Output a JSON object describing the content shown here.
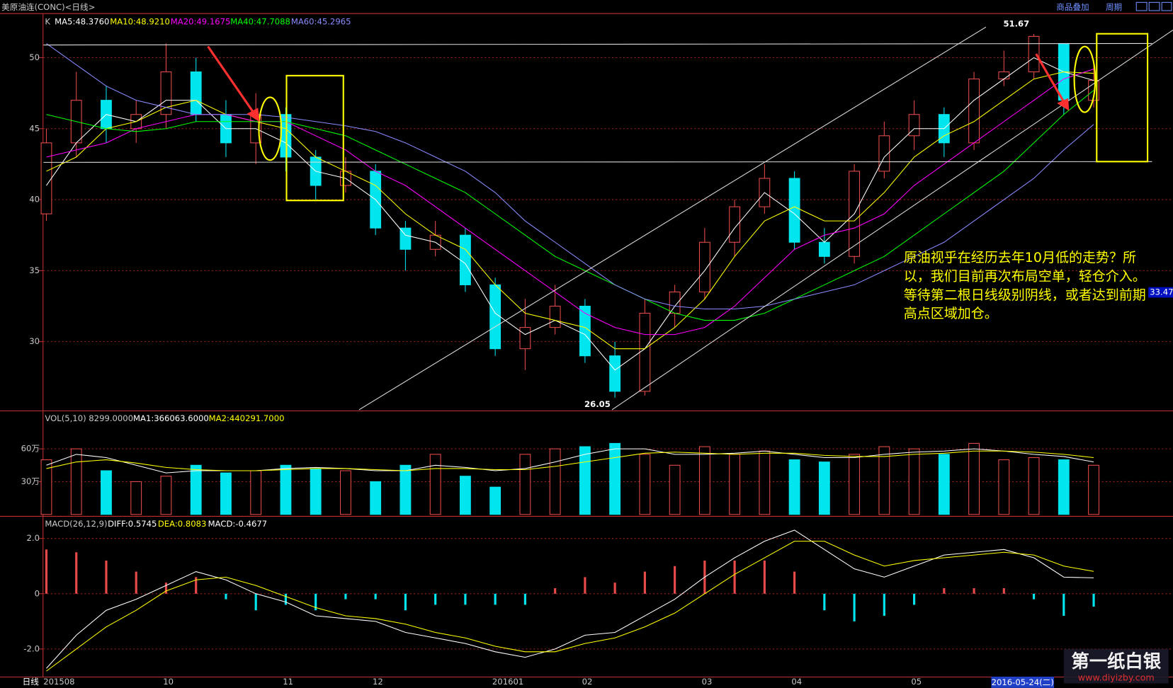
{
  "header": {
    "title": "美原油连(CONC)<日线>",
    "links": [
      "商品叠加",
      "周期"
    ]
  },
  "footer": {
    "period": "日线",
    "date": "2016-05-24(二)"
  },
  "note": [
    "原油视乎在经历去年10月低的走势？所",
    "以，我们目前再次布局空单，轻仓介入。",
    "等待第二根日线级别阴线，或者达到前期",
    "高点区域加仓。"
  ],
  "watermark": {
    "name": "第一纸白银",
    "url": "www.diyizby.com"
  },
  "cursor_price": 33.47,
  "chart_data": [
    {
      "type": "candlestick",
      "indicator": "K",
      "up_color": "#e84a4a",
      "down_color": "#00e5ee",
      "grid": true,
      "categories": [
        "201508",
        null,
        null,
        null,
        "10",
        null,
        null,
        null,
        "11",
        null,
        null,
        "12",
        null,
        null,
        null,
        "201601",
        null,
        null,
        "02",
        null,
        null,
        null,
        "03",
        null,
        null,
        "04",
        null,
        null,
        null,
        "05",
        null,
        null,
        null,
        null,
        null,
        null
      ],
      "open": [
        39,
        44,
        47,
        45,
        46,
        49,
        46,
        44,
        46,
        43,
        41,
        42,
        38,
        36.5,
        37.5,
        34,
        29.5,
        31,
        32.5,
        29,
        26.5,
        32,
        33.5,
        37,
        39.5,
        41.5,
        37,
        36,
        42,
        44.5,
        46,
        44,
        48.5,
        49,
        51,
        47
      ],
      "close": [
        44,
        47,
        45,
        46,
        49,
        46,
        44,
        46,
        43,
        41,
        42,
        38,
        36.5,
        37.5,
        34,
        29.5,
        31,
        32.5,
        29,
        26.5,
        32,
        33.5,
        37,
        39.5,
        41.5,
        37,
        36,
        42,
        44.5,
        46,
        44,
        48.5,
        49,
        51.5,
        47,
        48.4
      ],
      "high": [
        45,
        49,
        48,
        47,
        51,
        50,
        47,
        47.5,
        46.5,
        43.5,
        43,
        42.5,
        38.5,
        38.5,
        38,
        34.5,
        33,
        34,
        33,
        30,
        33,
        34,
        38,
        40,
        42.5,
        42,
        38,
        42.5,
        45.5,
        47,
        46.5,
        49,
        50.5,
        51.67,
        51,
        49.5
      ],
      "low": [
        38.5,
        43,
        44,
        44,
        45,
        45.5,
        43,
        42.5,
        42,
        40,
        40.5,
        37.5,
        35,
        36,
        33.5,
        29,
        28,
        30.5,
        28.5,
        26.05,
        26.2,
        31,
        33,
        36,
        39,
        36.5,
        35.5,
        35.5,
        41.5,
        43.5,
        43,
        43.5,
        48,
        48.5,
        46,
        46.5
      ],
      "series": [
        {
          "name": "MA5:48.3760",
          "color": "#ffffff",
          "values": [
            41,
            44,
            46,
            45.5,
            47,
            47,
            45,
            45,
            44,
            42,
            41.5,
            40,
            37.5,
            37,
            35.5,
            32,
            30.5,
            31.5,
            30.5,
            28,
            29.5,
            32.5,
            35,
            38,
            40.5,
            39,
            37,
            39,
            43,
            45,
            45,
            47,
            48.5,
            50,
            49,
            48.4
          ]
        },
        {
          "name": "MA10:48.9210",
          "color": "#ffff00",
          "values": [
            42,
            43,
            45,
            45.5,
            46.5,
            47,
            46,
            45.5,
            45,
            43,
            42,
            41,
            39,
            37.5,
            36.5,
            34,
            32,
            31.5,
            31,
            29.5,
            29.5,
            31,
            33,
            36,
            38.5,
            39.5,
            38.5,
            38.5,
            40.5,
            43,
            44.5,
            45.5,
            47,
            48.5,
            49,
            48.9
          ]
        },
        {
          "name": "MA20:49.1675",
          "color": "#ff00ff",
          "values": [
            43,
            43.5,
            44,
            45,
            45.5,
            46,
            46,
            45.5,
            45.5,
            44.5,
            43.5,
            42,
            41,
            39.5,
            38,
            36.5,
            35,
            33.5,
            32,
            31,
            30.5,
            30.5,
            31,
            32.5,
            34.5,
            36.5,
            37.5,
            38,
            39,
            41,
            42.5,
            44,
            45.5,
            47,
            48.5,
            49.2
          ]
        },
        {
          "name": "MA40:47.7088",
          "color": "#00ff00",
          "values": [
            46,
            45.5,
            45,
            44.8,
            45,
            45.5,
            45.5,
            45.5,
            45.5,
            45,
            44.5,
            43.5,
            42.5,
            41.5,
            40.5,
            39,
            37.5,
            36,
            35,
            34,
            33,
            32,
            31.5,
            31.5,
            32,
            33,
            34,
            35,
            36,
            37.5,
            39,
            40.5,
            42,
            44,
            46,
            47.7
          ]
        },
        {
          "name": "MA60:45.2965",
          "color": "#8a8aff",
          "values": [
            51,
            49.5,
            48,
            47,
            46.5,
            46,
            46,
            46,
            45.8,
            45.5,
            45.2,
            44.8,
            44,
            43,
            42,
            40.5,
            38.5,
            37,
            35.5,
            34,
            33,
            32.5,
            32.3,
            32.3,
            32.5,
            33,
            33.5,
            34,
            35,
            36,
            37,
            38.5,
            40,
            41.5,
            43.5,
            45.3
          ]
        }
      ],
      "ylim": [
        25.2,
        53
      ],
      "yticks": [
        30,
        35,
        40,
        45,
        50
      ]
    },
    {
      "type": "bar",
      "indicator": "VOL(5,10) 8299.0000",
      "grid": true,
      "values": [
        50,
        60,
        40,
        30,
        35,
        45,
        38,
        40,
        45,
        42,
        40,
        30,
        45,
        55,
        35,
        25,
        55,
        60,
        62,
        65,
        55,
        45,
        62,
        55,
        58,
        50,
        48,
        55,
        62,
        60,
        55,
        65,
        50,
        52,
        50,
        45
      ],
      "series": [
        {
          "name": "MA1:366063.6000",
          "color": "#ffffff",
          "values": [
            45,
            55,
            52,
            45,
            38,
            40,
            40,
            40,
            42,
            43,
            42,
            40,
            40,
            45,
            43,
            40,
            42,
            48,
            55,
            60,
            60,
            55,
            55,
            56,
            58,
            55,
            52,
            52,
            55,
            57,
            58,
            60,
            58,
            55,
            53,
            48
          ]
        },
        {
          "name": "MA2:440291.7000",
          "color": "#ffff00",
          "values": [
            42,
            48,
            50,
            47,
            43,
            41,
            40,
            40,
            41,
            42,
            42,
            41,
            40,
            42,
            42,
            41,
            41,
            44,
            48,
            52,
            56,
            57,
            56,
            55,
            56,
            56,
            54,
            53,
            53,
            55,
            56,
            58,
            58,
            57,
            55,
            52
          ]
        }
      ],
      "ylim": [
        0,
        93
      ],
      "yticks": [
        {
          "value": 30,
          "label": "30万"
        },
        {
          "value": 60,
          "label": "60万"
        }
      ]
    },
    {
      "type": "bar",
      "indicator": "MACD(26,12,9)",
      "grid": true,
      "name": "MACD:-0.4677",
      "color": "#ffffff",
      "values": [
        1.6,
        1.5,
        1.2,
        0.8,
        0.4,
        0.6,
        -0.2,
        -0.6,
        -0.4,
        -0.6,
        -0.2,
        -0.2,
        -0.6,
        -0.4,
        -0.4,
        -0.4,
        -0.4,
        0.2,
        0.6,
        0.4,
        0.8,
        1.0,
        1.2,
        1.2,
        1.2,
        0.8,
        -0.6,
        -1.0,
        -0.8,
        -0.4,
        0.2,
        0.2,
        0.2,
        -0.2,
        -0.8,
        -0.4677
      ],
      "series": [
        {
          "name": "DIFF:0.5745",
          "color": "#ffffff",
          "values": [
            -2.7,
            -1.5,
            -0.6,
            -0.2,
            0.3,
            0.8,
            0.5,
            0.0,
            -0.3,
            -0.8,
            -0.9,
            -1.0,
            -1.4,
            -1.6,
            -1.8,
            -2.1,
            -2.3,
            -2.0,
            -1.5,
            -1.4,
            -0.8,
            -0.2,
            0.6,
            1.3,
            1.9,
            2.3,
            1.6,
            0.9,
            0.6,
            1.0,
            1.4,
            1.5,
            1.6,
            1.3,
            0.6,
            0.5745
          ]
        },
        {
          "name": "DEA:0.8083",
          "color": "#ffff00",
          "values": [
            -2.8,
            -2.0,
            -1.2,
            -0.6,
            0.1,
            0.5,
            0.6,
            0.3,
            -0.1,
            -0.5,
            -0.8,
            -0.9,
            -1.1,
            -1.4,
            -1.6,
            -1.9,
            -2.1,
            -2.1,
            -1.8,
            -1.6,
            -1.2,
            -0.7,
            0.0,
            0.7,
            1.3,
            1.9,
            1.9,
            1.4,
            1.0,
            1.2,
            1.3,
            1.4,
            1.5,
            1.4,
            1.0,
            0.8083
          ]
        }
      ],
      "ylim": [
        -3.19,
        2.76
      ],
      "yticks": [
        {
          "value": -2,
          "label": "-2.0"
        },
        0,
        {
          "value": 2,
          "label": "2.0"
        }
      ]
    }
  ]
}
